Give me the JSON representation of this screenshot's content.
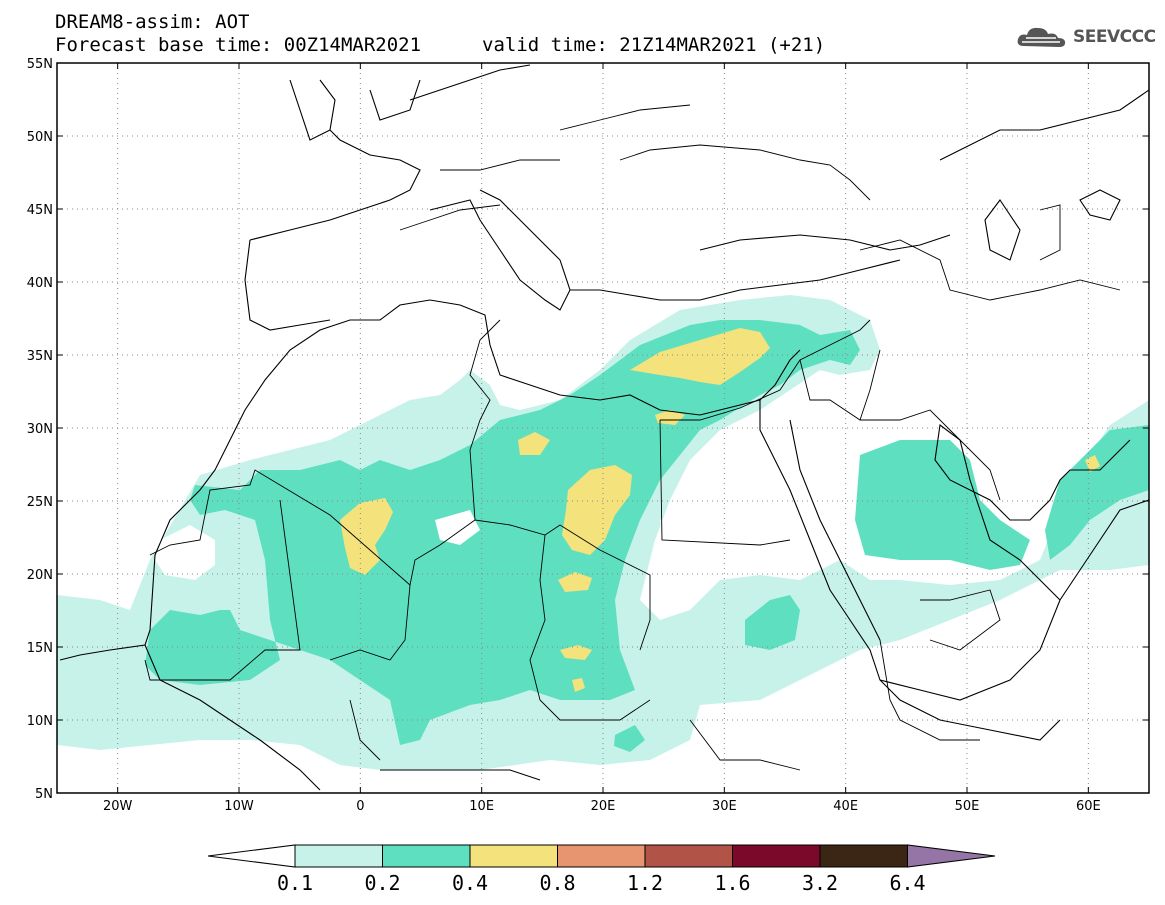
{
  "header": {
    "line1": "DREAM8-assim: AOT",
    "line2": "Forecast base time: 00Z14MAR2021",
    "valid": "valid time: 21Z14MAR2021 (+21)"
  },
  "logo": {
    "text": "SEEVCCC",
    "icon": "cloud-icon"
  },
  "map": {
    "lon_range": [
      -25,
      65
    ],
    "lat_range": [
      5,
      55
    ],
    "lat_ticks": [
      "5N",
      "10N",
      "15N",
      "20N",
      "25N",
      "30N",
      "35N",
      "40N",
      "45N",
      "50N",
      "55N"
    ],
    "lon_ticks": [
      "20W",
      "10W",
      "0",
      "10E",
      "20E",
      "30E",
      "40E",
      "50E",
      "60E"
    ]
  },
  "colorbar": {
    "labels": [
      "0.1",
      "0.2",
      "0.4",
      "0.8",
      "1.2",
      "1.6",
      "3.2",
      "6.4"
    ],
    "colors": [
      "#ffffff",
      "#c7f2ea",
      "#5ee0c0",
      "#f4e27c",
      "#e79470",
      "#b25347",
      "#7b0a2a",
      "#3b2514",
      "#9574a6"
    ]
  }
}
